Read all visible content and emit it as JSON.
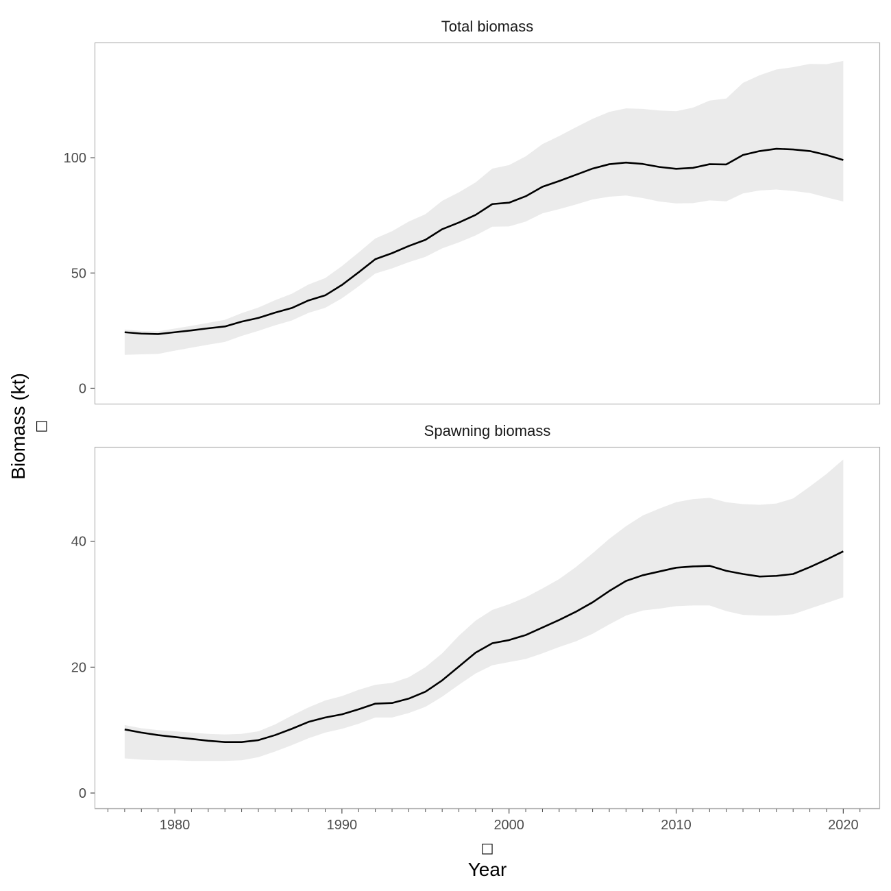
{
  "chart_data": {
    "type": "line",
    "ylabel": "Biomass (kt)",
    "xlabel": "Year",
    "ylabel_glyph": "□",
    "xlabel_glyph": "□",
    "xlim": [
      1975.2,
      2022.2
    ],
    "x_ticks": [
      1980,
      1990,
      2000,
      2010,
      2020
    ],
    "x_tick_labels": [
      "1980",
      "1990",
      "2000",
      "2010",
      "2020"
    ],
    "x_minor_ticks": [
      1976,
      1977,
      1978,
      1979,
      1981,
      1982,
      1983,
      1984,
      1985,
      1986,
      1987,
      1988,
      1989,
      1991,
      1992,
      1993,
      1994,
      1995,
      1996,
      1997,
      1998,
      1999,
      2001,
      2002,
      2003,
      2004,
      2005,
      2006,
      2007,
      2008,
      2009,
      2011,
      2012,
      2013,
      2014,
      2015,
      2016,
      2017,
      2018,
      2019,
      2021
    ],
    "grid": false,
    "colors": {
      "line": "#000000",
      "ribbon": "#ebebeb",
      "panel_border": "#b3b3b3",
      "tick": "#4d4d4d"
    },
    "x": [
      1977,
      1978,
      1979,
      1980,
      1981,
      1982,
      1983,
      1984,
      1985,
      1986,
      1987,
      1988,
      1989,
      1990,
      1991,
      1992,
      1993,
      1994,
      1995,
      1996,
      1997,
      1998,
      1999,
      2000,
      2001,
      2002,
      2003,
      2004,
      2005,
      2006,
      2007,
      2008,
      2009,
      2010,
      2011,
      2012,
      2013,
      2014,
      2015,
      2016,
      2017,
      2018,
      2019,
      2020
    ],
    "panels": [
      {
        "title": "Total biomass",
        "ylim": [
          -7,
          150
        ],
        "y_ticks": [
          0,
          50,
          100
        ],
        "y_tick_labels": [
          "0",
          "50",
          "100"
        ],
        "series": [
          {
            "values": [
              24.3,
              23.7,
              23.5,
              24.3,
              25.1,
              26.0,
              26.8,
              28.9,
              30.5,
              32.8,
              34.8,
              38.1,
              40.3,
              44.8,
              50.3,
              56.0,
              58.6,
              61.7,
              64.4,
              69.0,
              71.9,
              75.2,
              79.9,
              80.5,
              83.3,
              87.4,
              89.9,
              92.6,
              95.3,
              97.2,
              97.9,
              97.3,
              96.0,
              95.2,
              95.6,
              97.2,
              97.1,
              101.2,
              102.9,
              103.9,
              103.6,
              102.9,
              101.2,
              99.0
            ],
            "lower": [
              14.5,
              14.7,
              14.9,
              16.3,
              17.6,
              18.9,
              20.1,
              22.7,
              24.9,
              27.3,
              29.4,
              32.7,
              34.9,
              39.0,
              44.2,
              49.8,
              52.0,
              54.7,
              57.0,
              60.7,
              63.3,
              66.3,
              70.1,
              70.2,
              72.3,
              75.9,
              77.7,
              79.7,
              81.9,
              83.1,
              83.6,
              82.5,
              81.0,
              80.2,
              80.3,
              81.5,
              81.1,
              84.5,
              85.8,
              86.2,
              85.6,
              84.7,
              82.8,
              81.0
            ],
            "upper": [
              25.5,
              24.8,
              24.7,
              25.9,
              27.1,
              28.4,
              29.7,
              32.6,
              35.0,
              38.2,
              41.0,
              45.0,
              47.8,
              53.0,
              58.9,
              65.0,
              68.1,
              72.3,
              75.5,
              81.3,
              85.0,
              89.3,
              95.3,
              96.8,
              100.6,
              105.9,
              109.4,
              113.2,
              116.9,
              119.9,
              121.4,
              121.2,
              120.5,
              120.2,
              121.7,
              124.8,
              125.7,
              132.5,
              135.8,
              138.3,
              139.3,
              140.7,
              140.6,
              142.0
            ]
          }
        ]
      },
      {
        "title": "Spawning biomass",
        "ylim": [
          -2.5,
          55
        ],
        "y_ticks": [
          0,
          20,
          40
        ],
        "y_tick_labels": [
          "0",
          "20",
          "40"
        ],
        "series": [
          {
            "values": [
              10.1,
              9.6,
              9.2,
              8.9,
              8.6,
              8.3,
              8.1,
              8.1,
              8.4,
              9.2,
              10.2,
              11.3,
              12.0,
              12.5,
              13.3,
              14.2,
              14.3,
              15.0,
              16.1,
              17.9,
              20.1,
              22.3,
              23.8,
              24.3,
              25.1,
              26.3,
              27.5,
              28.8,
              30.3,
              32.1,
              33.7,
              34.6,
              35.2,
              35.8,
              36.0,
              36.1,
              35.3,
              34.8,
              34.4,
              34.5,
              34.8,
              35.9,
              37.1,
              38.4
            ],
            "lower": [
              5.5,
              5.3,
              5.2,
              5.2,
              5.1,
              5.1,
              5.1,
              5.2,
              5.7,
              6.6,
              7.6,
              8.7,
              9.6,
              10.2,
              11.0,
              12.0,
              12.0,
              12.7,
              13.7,
              15.3,
              17.2,
              19.0,
              20.3,
              20.8,
              21.3,
              22.2,
              23.2,
              24.1,
              25.3,
              26.8,
              28.2,
              29.0,
              29.3,
              29.7,
              29.8,
              29.8,
              28.9,
              28.3,
              28.2,
              28.2,
              28.4,
              29.3,
              30.2,
              31.1
            ],
            "upper": [
              10.8,
              10.3,
              10.0,
              9.8,
              9.6,
              9.4,
              9.3,
              9.4,
              9.8,
              10.9,
              12.3,
              13.6,
              14.7,
              15.4,
              16.4,
              17.2,
              17.5,
              18.4,
              20.0,
              22.2,
              25.0,
              27.4,
              29.1,
              30.0,
              31.1,
              32.5,
              34.0,
              35.9,
              38.1,
              40.4,
              42.4,
              44.1,
              45.2,
              46.2,
              46.7,
              46.9,
              46.2,
              45.9,
              45.8,
              46.0,
              46.8,
              48.7,
              50.7,
              53.0
            ]
          }
        ]
      }
    ]
  }
}
